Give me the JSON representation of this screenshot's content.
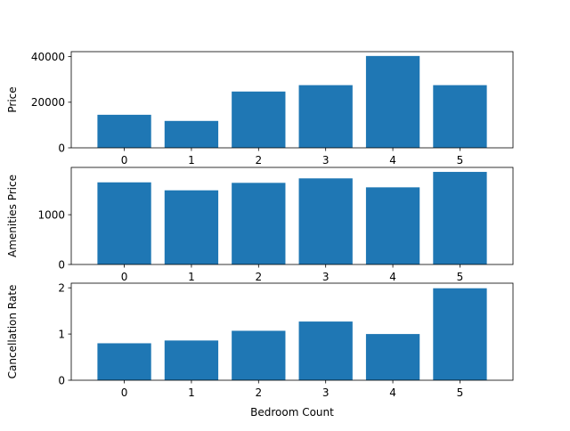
{
  "chart_data": [
    {
      "type": "bar",
      "categories": [
        "0",
        "1",
        "2",
        "3",
        "4",
        "5"
      ],
      "values": [
        14500,
        11800,
        24700,
        27500,
        40300,
        27500
      ],
      "title": "",
      "xlabel": "",
      "ylabel": "Price",
      "ylim": [
        0,
        42200
      ],
      "yticks": [
        0,
        20000,
        40000
      ],
      "ytick_labels": [
        "0",
        "20000",
        "40000"
      ],
      "color": "#1f77b4"
    },
    {
      "type": "bar",
      "categories": [
        "0",
        "1",
        "2",
        "3",
        "4",
        "5"
      ],
      "values": [
        1650,
        1490,
        1640,
        1730,
        1550,
        1860
      ],
      "title": "",
      "xlabel": "",
      "ylabel": "Amenities Price",
      "ylim": [
        0,
        1950
      ],
      "yticks": [
        0,
        1000
      ],
      "ytick_labels": [
        "0",
        "1000"
      ],
      "color": "#1f77b4"
    },
    {
      "type": "bar",
      "categories": [
        "0",
        "1",
        "2",
        "3",
        "4",
        "5"
      ],
      "values": [
        0.8,
        0.86,
        1.07,
        1.27,
        1.0,
        1.99
      ],
      "title": "",
      "xlabel": "Bedroom Count",
      "ylabel": "Cancellation Rate",
      "ylim": [
        0,
        2.1
      ],
      "yticks": [
        0,
        1,
        2
      ],
      "ytick_labels": [
        "0",
        "1",
        "2"
      ],
      "color": "#1f77b4"
    }
  ]
}
